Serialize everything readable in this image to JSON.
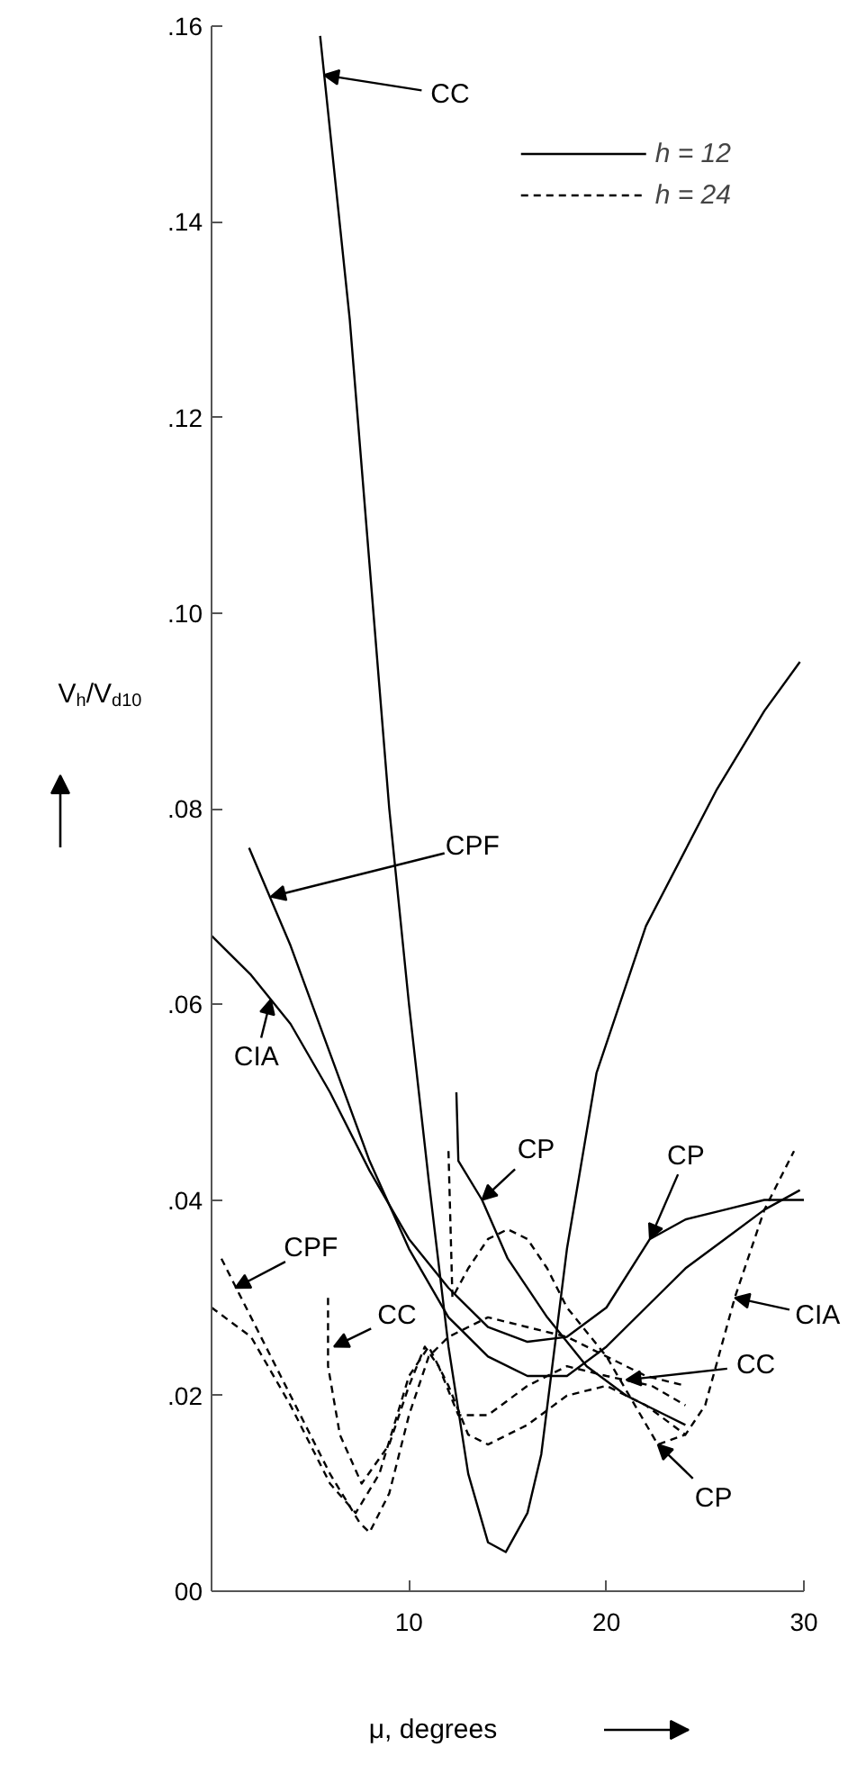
{
  "chart_data": {
    "type": "line",
    "xlabel": "μ, degrees",
    "ylabel": "V$_{h}$/V$_{d10}$",
    "xlim": [
      0,
      30
    ],
    "ylim": [
      0,
      0.16
    ],
    "xticks": [
      10,
      20,
      30
    ],
    "yticks": [
      {
        "value": 0,
        "label": "00"
      },
      {
        "value": 0.02,
        "label": ".02"
      },
      {
        "value": 0.04,
        "label": ".04"
      },
      {
        "value": 0.06,
        "label": ".06"
      },
      {
        "value": 0.08,
        "label": ".08"
      },
      {
        "value": 0.1,
        "label": ".10"
      },
      {
        "value": 0.12,
        "label": ".12"
      },
      {
        "value": 0.14,
        "label": ".14"
      },
      {
        "value": 0.16,
        "label": ".16"
      }
    ],
    "grid": false,
    "legend": "top right",
    "marker": "none",
    "series": [
      {
        "name": "h = 12",
        "color": "#000000",
        "line_style": "solid",
        "x": [
          5.5,
          7,
          8,
          9,
          10,
          11,
          12,
          13,
          14,
          14.9,
          16,
          16.7,
          18,
          19.5,
          22,
          25.6,
          28,
          29.8
        ],
        "values": [
          0.159,
          0.13,
          0.105,
          0.08,
          0.06,
          0.042,
          0.025,
          0.012,
          0.005,
          0.004,
          0.008,
          0.014,
          0.035,
          0.053,
          0.068,
          0.082,
          0.09,
          0.095
        ]
      },
      {
        "color": "#000000",
        "line_style": "solid",
        "x": [
          1.9,
          4,
          6,
          8,
          10,
          12,
          14,
          16,
          18,
          20,
          22,
          24,
          26,
          28,
          29.8
        ],
        "values": [
          0.076,
          0.066,
          0.055,
          0.044,
          0.035,
          0.028,
          0.024,
          0.022,
          0.022,
          0.025,
          0.029,
          0.033,
          0.036,
          0.039,
          0.041
        ]
      },
      {
        "color": "#000000",
        "line_style": "solid",
        "x": [
          0,
          2,
          4,
          6,
          8,
          10,
          12,
          14,
          16,
          18,
          20,
          22.2,
          24,
          26,
          28,
          30
        ],
        "values": [
          0.067,
          0.063,
          0.058,
          0.051,
          0.043,
          0.036,
          0.031,
          0.027,
          0.0255,
          0.026,
          0.029,
          0.036,
          0.038,
          0.039,
          0.04,
          0.04
        ]
      },
      {
        "color": "#000000",
        "line_style": "solid",
        "x": [
          12.4,
          12.5,
          13.7,
          15,
          17,
          19,
          21,
          23,
          24
        ],
        "values": [
          0.051,
          0.044,
          0.04,
          0.034,
          0.028,
          0.023,
          0.02,
          0.018,
          0.017
        ]
      },
      {
        "name": "h = 24",
        "color": "#000000",
        "line_style": "dashed",
        "x": [
          0.5,
          2,
          4,
          6,
          7.5,
          8,
          9,
          10,
          11,
          12,
          14,
          16,
          18,
          20,
          22,
          24
        ],
        "values": [
          0.034,
          0.028,
          0.02,
          0.012,
          0.007,
          0.006,
          0.01,
          0.018,
          0.024,
          0.026,
          0.028,
          0.027,
          0.026,
          0.024,
          0.022,
          0.021
        ]
      },
      {
        "color": "#000000",
        "line_style": "dashed",
        "x": [
          0,
          2,
          4,
          6,
          7.3,
          8.5,
          10,
          11,
          12,
          13,
          14,
          16,
          18,
          20,
          22,
          24,
          25,
          26.5,
          28,
          29.5
        ],
        "values": [
          0.029,
          0.026,
          0.019,
          0.011,
          0.008,
          0.012,
          0.022,
          0.025,
          0.021,
          0.016,
          0.015,
          0.017,
          0.02,
          0.021,
          0.019,
          0.016,
          0.019,
          0.03,
          0.039,
          0.045
        ]
      },
      {
        "color": "#000000",
        "line_style": "dashed",
        "x": [
          5.9,
          5.9,
          6.5,
          7.6,
          9,
          10,
          10.8,
          11.5,
          12.5,
          14,
          16,
          18,
          20,
          22.3,
          24
        ],
        "values": [
          0.03,
          0.023,
          0.016,
          0.011,
          0.015,
          0.021,
          0.025,
          0.023,
          0.018,
          0.018,
          0.021,
          0.023,
          0.022,
          0.021,
          0.019
        ]
      },
      {
        "color": "#000000",
        "line_style": "dashed",
        "x": [
          12,
          12.2,
          13,
          14,
          15,
          16,
          17,
          18,
          20,
          22.6,
          24
        ],
        "values": [
          0.045,
          0.03,
          0.033,
          0.036,
          0.037,
          0.036,
          0.033,
          0.029,
          0.024,
          0.015,
          0.016
        ]
      }
    ],
    "annotations": [
      {
        "text": "CC",
        "x": 5.7,
        "y": 0.155
      },
      {
        "text": "CPF",
        "x": 3,
        "y": 0.071
      },
      {
        "text": "CIA",
        "x": 3,
        "y": 0.0605
      },
      {
        "text": "CP",
        "x": 13.7,
        "y": 0.04
      },
      {
        "text": "CP",
        "x": 22.2,
        "y": 0.036
      },
      {
        "text": "CPF",
        "x": 1.2,
        "y": 0.031
      },
      {
        "text": "CC",
        "x": 6.2,
        "y": 0.025
      },
      {
        "text": "CIA",
        "x": 26.5,
        "y": 0.03
      },
      {
        "text": "CC",
        "x": 21,
        "y": 0.0216
      },
      {
        "text": "CP",
        "x": 22.6,
        "y": 0.015
      }
    ]
  }
}
